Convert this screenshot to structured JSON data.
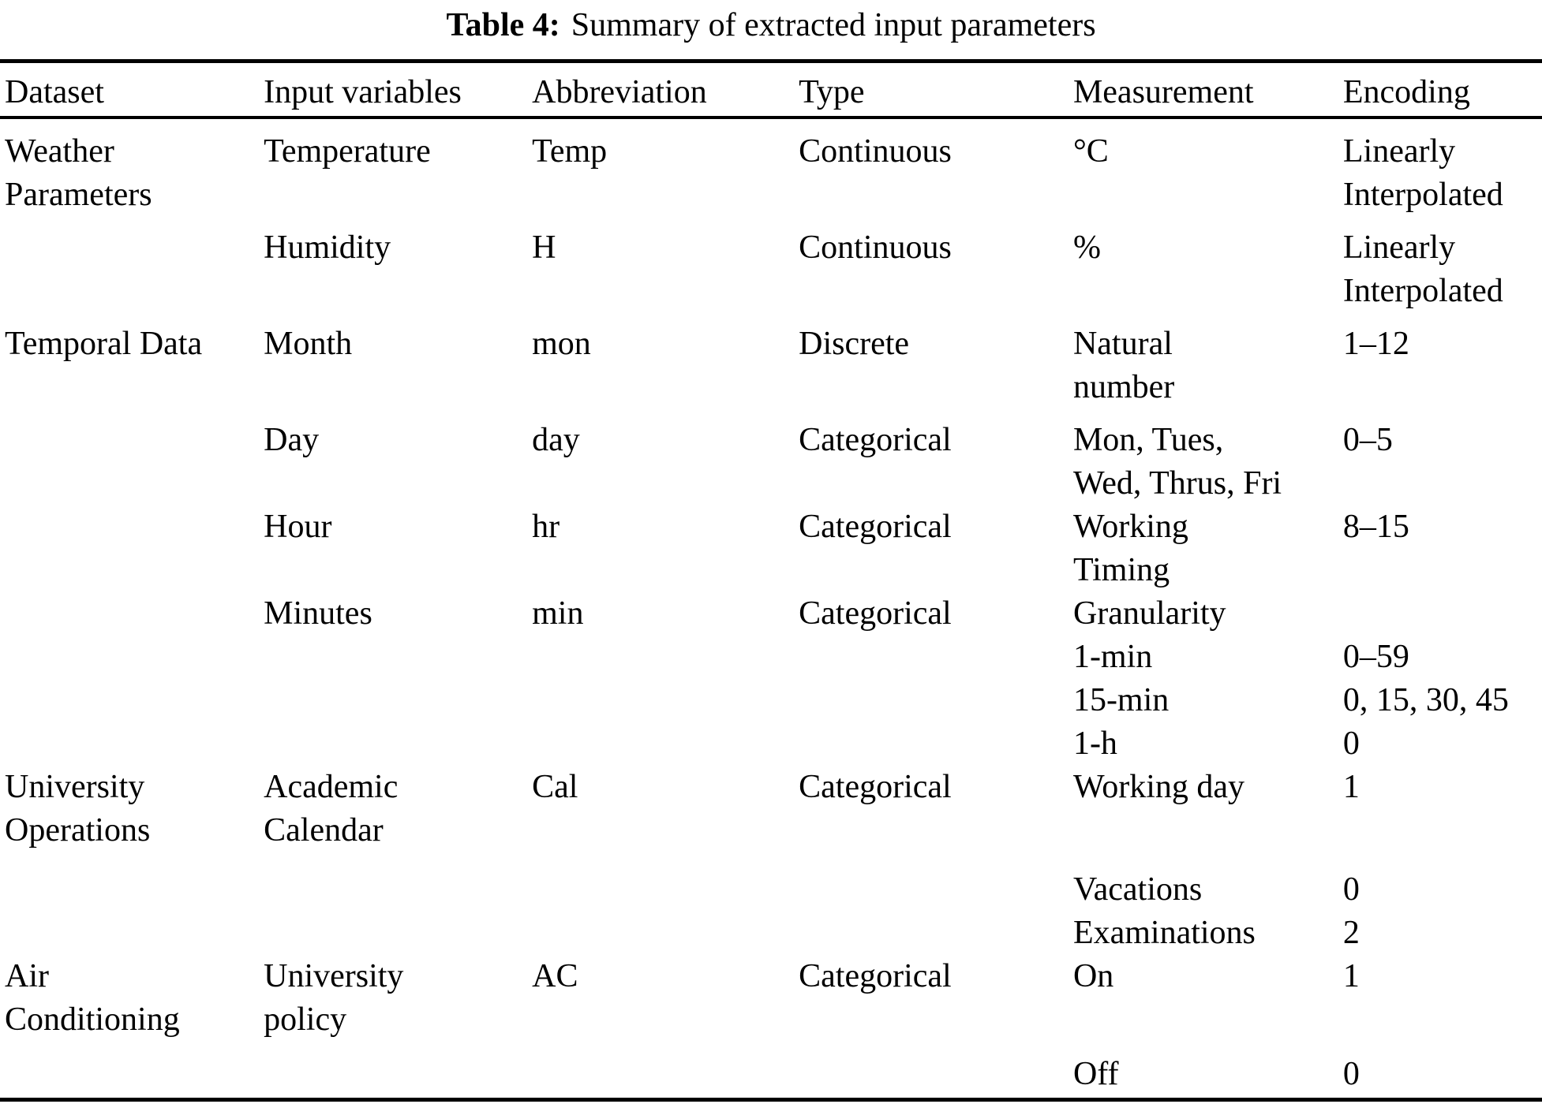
{
  "caption": {
    "label": "Table 4:",
    "text": "Summary of extracted input parameters"
  },
  "table": {
    "headers": [
      "Dataset",
      "Input variables",
      "Abbreviation",
      "Type",
      "Measurement",
      "Encoding"
    ],
    "rows": [
      [
        "Weather\nParameters",
        "Temperature",
        "Temp",
        "Continuous",
        "°C",
        "Linearly\nInterpolated"
      ],
      [
        "",
        "Humidity",
        "H",
        "Continuous",
        "%",
        "Linearly\nInterpolated"
      ],
      [
        "Temporal Data",
        "Month",
        "mon",
        "Discrete",
        "Natural\nnumber",
        "1–12"
      ],
      [
        "",
        "Day",
        "day",
        "Categorical",
        "Mon, Tues,\nWed, Thrus, Fri",
        "0–5"
      ],
      [
        "",
        "Hour",
        "hr",
        "Categorical",
        "Working\nTiming",
        "8–15"
      ],
      [
        "",
        "Minutes",
        "min",
        "Categorical",
        "Granularity",
        ""
      ],
      [
        "",
        "",
        "",
        "",
        "1-min",
        "0–59"
      ],
      [
        "",
        "",
        "",
        "",
        "15-min",
        "0, 15, 30, 45"
      ],
      [
        "",
        "",
        "",
        "",
        "1-h",
        "0"
      ],
      [
        "University\nOperations",
        "Academic\nCalendar",
        "Cal",
        "Categorical",
        "Working day",
        "1"
      ],
      [
        "",
        "",
        "",
        "",
        "Vacations",
        "0"
      ],
      [
        "",
        "",
        "",
        "",
        "Examinations",
        "2"
      ],
      [
        "Air\nConditioning",
        "University\npolicy",
        "AC",
        "Categorical",
        "On",
        "1"
      ],
      [
        "",
        "",
        "",
        "",
        "Off",
        "0"
      ]
    ]
  }
}
